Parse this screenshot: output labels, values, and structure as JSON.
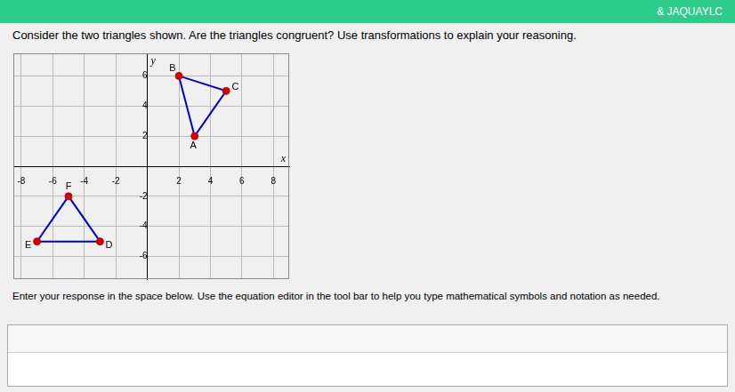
{
  "chart_data": {
    "type": "scatter",
    "title": "Consider the two triangles shown. Are the triangles congruent? Use transformations to explain your reasoning.",
    "subtitle": "Enter your response in the space below. Use the equation editor in the tool bar to help you type mathematical symbols and notation as needed.",
    "x_label": "x",
    "y_label": "y",
    "series": [
      {
        "type": "line",
        "color": "#0000CC",
        "marker": "none",
        "line_style": "solid",
        "x": [
          3,
          2,
          5,
          3
        ],
        "y": [
          2,
          6,
          5,
          2
        ]
      },
      {
        "type": "scatter",
        "color": "#CC0000",
        "marker": "circle",
        "x": [
          3,
          2,
          5
        ],
        "y": [
          2,
          6,
          5
        ]
      },
      {
        "type": "line",
        "color": "#0000CC",
        "marker": "none",
        "line_style": "solid",
        "x": [
          -3,
          -7,
          -5,
          -3
        ],
        "y": [
          -5,
          -5,
          -2,
          -5
        ]
      },
      {
        "type": "scatter",
        "color": "#CC0000",
        "marker": "circle",
        "x": [
          -3,
          -7,
          -5
        ],
        "y": [
          -5,
          -5,
          -2
        ]
      }
    ],
    "xlim": [
      -8.5,
      9
    ],
    "ylim": [
      -7.5,
      7.5
    ],
    "xticks": [
      -8,
      -6,
      -4,
      -2,
      2,
      4,
      6,
      8
    ],
    "yticks": [
      -6,
      -4,
      -2,
      2,
      4,
      6
    ],
    "grid": true,
    "annotations": [
      {
        "text": "A",
        "x": 3,
        "y": 2
      },
      {
        "text": "B",
        "x": 2,
        "y": 6
      },
      {
        "text": "C",
        "x": 5,
        "y": 5
      },
      {
        "text": "D",
        "x": -3,
        "y": -5
      },
      {
        "text": "E",
        "x": -7,
        "y": -5
      },
      {
        "text": "F",
        "x": -5,
        "y": -2
      },
      {
        "text": "& JAQUAYLC"
      }
    ]
  }
}
